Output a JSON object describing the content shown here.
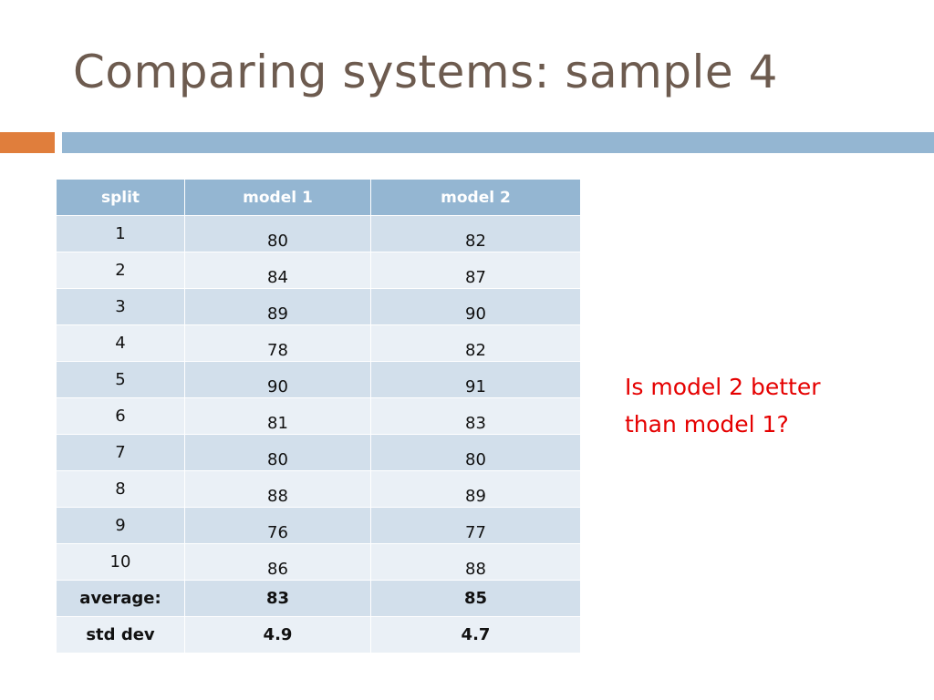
{
  "slide": {
    "title": "Comparing systems: sample 4",
    "accent_colors": {
      "title": "#6d5b4f",
      "orange_bar": "#e07e3c",
      "blue_bar": "#94b6d2",
      "question": "#e50000"
    }
  },
  "table": {
    "headers": [
      "split",
      "model 1",
      "model 2"
    ],
    "rows": [
      {
        "split": "1",
        "model1": "80",
        "model2": "82"
      },
      {
        "split": "2",
        "model1": "84",
        "model2": "87"
      },
      {
        "split": "3",
        "model1": "89",
        "model2": "90"
      },
      {
        "split": "4",
        "model1": "78",
        "model2": "82"
      },
      {
        "split": "5",
        "model1": "90",
        "model2": "91"
      },
      {
        "split": "6",
        "model1": "81",
        "model2": "83"
      },
      {
        "split": "7",
        "model1": "80",
        "model2": "80"
      },
      {
        "split": "8",
        "model1": "88",
        "model2": "89"
      },
      {
        "split": "9",
        "model1": "76",
        "model2": "77"
      },
      {
        "split": "10",
        "model1": "86",
        "model2": "88"
      }
    ],
    "average": {
      "label": "average:",
      "model1": "83",
      "model2": "85"
    },
    "std_dev": {
      "label": "std dev",
      "model1": "4.9",
      "model2": "4.7"
    }
  },
  "question": {
    "line1": "Is model 2 better",
    "line2": "than model 1?"
  }
}
